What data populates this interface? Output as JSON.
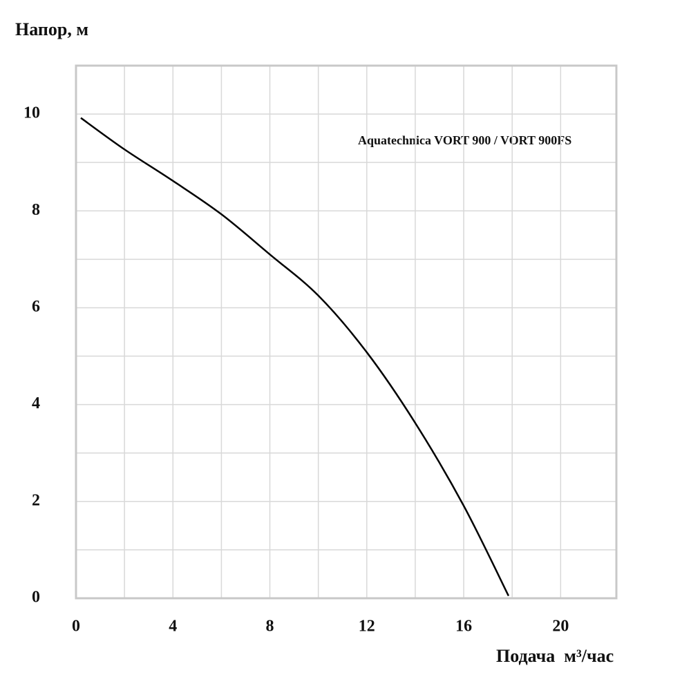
{
  "chart_data": {
    "type": "line",
    "y_label": "Напор, м",
    "x_label": "Подача  м³/час",
    "annotation": "Aquatechnica VORT 900 / VORT 900FS",
    "series": [
      {
        "name": "Aquatechnica VORT 900 / VORT 900FS",
        "color": "#000000",
        "x": [
          0.2,
          2,
          4,
          6,
          8,
          10,
          12,
          14,
          16,
          17.85
        ],
        "values": [
          9.92,
          9.27,
          8.62,
          7.93,
          7.1,
          6.25,
          5.08,
          3.62,
          1.91,
          0.05
        ]
      }
    ],
    "xlim": [
      0,
      22.3
    ],
    "ylim": [
      0,
      11
    ],
    "xticks": [
      0,
      4,
      8,
      12,
      16,
      20
    ],
    "yticks": [
      0,
      2,
      4,
      6,
      8,
      10
    ],
    "xgrid": [
      2,
      6,
      10,
      14,
      18
    ],
    "ygrid": [
      1,
      3,
      5,
      7,
      9
    ],
    "grid": true
  }
}
